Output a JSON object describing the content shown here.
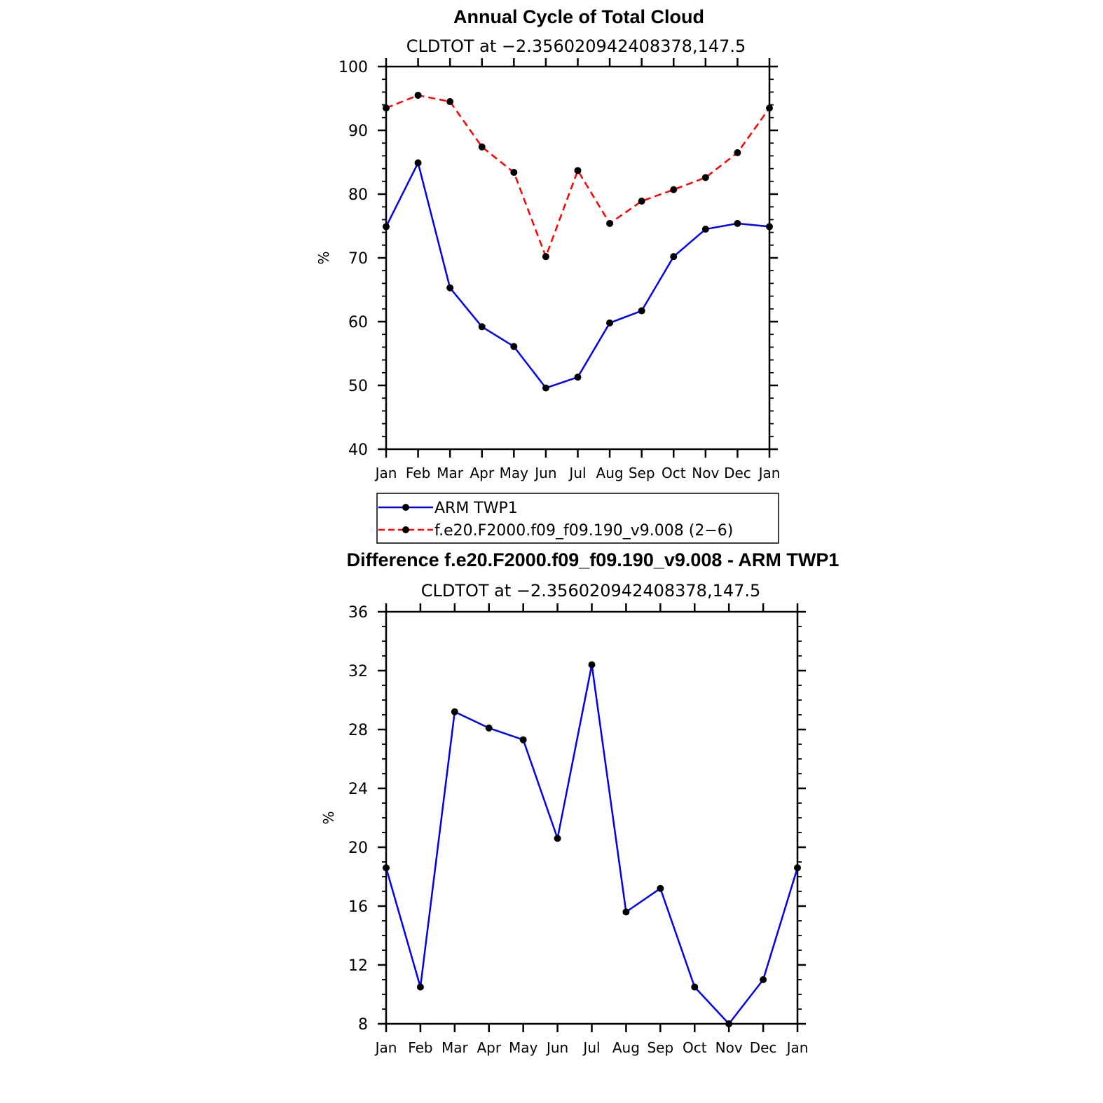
{
  "chart_data": [
    {
      "type": "line",
      "title": "Annual Cycle of Total Cloud",
      "subtitle": "CLDTOT at −2.356020942408378,147.5",
      "xlabel": "",
      "ylabel": "%",
      "categories": [
        "Jan",
        "Feb",
        "Mar",
        "Apr",
        "May",
        "Jun",
        "Jul",
        "Aug",
        "Sep",
        "Oct",
        "Nov",
        "Dec",
        "Jan"
      ],
      "ylim": [
        40,
        100
      ],
      "yticks": [
        40,
        50,
        60,
        70,
        80,
        90,
        100
      ],
      "series": [
        {
          "name": "ARM TWP1",
          "color": "#0000ee",
          "dashed": false,
          "values": [
            74.9,
            84.9,
            65.3,
            59.2,
            56.1,
            49.6,
            51.3,
            59.8,
            61.7,
            70.2,
            74.5,
            75.4,
            74.9
          ]
        },
        {
          "name": "f.e20.F2000.f09_f09.190_v9.008 (2−6)",
          "color": "#ff0000",
          "dashed": true,
          "values": [
            93.5,
            95.5,
            94.5,
            87.4,
            83.4,
            70.2,
            83.7,
            75.4,
            78.9,
            80.7,
            82.6,
            86.5,
            93.5
          ]
        }
      ],
      "legend": "below"
    },
    {
      "type": "line",
      "title": "Difference f.e20.F2000.f09_f09.190_v9.008 - ARM TWP1",
      "subtitle": "CLDTOT at −2.356020942408378,147.5",
      "xlabel": "",
      "ylabel": "%",
      "categories": [
        "Jan",
        "Feb",
        "Mar",
        "Apr",
        "May",
        "Jun",
        "Jul",
        "Aug",
        "Sep",
        "Oct",
        "Nov",
        "Dec",
        "Jan"
      ],
      "ylim": [
        8,
        36
      ],
      "yticks": [
        8,
        12,
        16,
        20,
        24,
        28,
        32,
        36
      ],
      "series": [
        {
          "name": "Difference",
          "color": "#0000ee",
          "dashed": false,
          "values": [
            18.6,
            10.5,
            29.2,
            28.1,
            27.3,
            20.6,
            32.4,
            15.6,
            17.2,
            10.5,
            8.0,
            11.0,
            18.6
          ]
        }
      ]
    }
  ]
}
